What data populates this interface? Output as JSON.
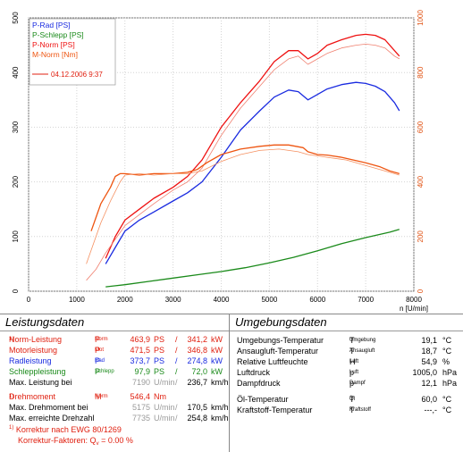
{
  "chart_data": {
    "type": "line",
    "xlabel": "n [U/min]",
    "xlim": [
      0,
      8000
    ],
    "x_ticks": [
      "0",
      "1000",
      "2000",
      "3000",
      "4000",
      "5000",
      "6000",
      "7000",
      "8000"
    ],
    "ylim_left": [
      0,
      500
    ],
    "y_ticks_left": [
      "0",
      "100",
      "200",
      "300",
      "400",
      "500"
    ],
    "ylim_right": [
      0,
      1000
    ],
    "y_ticks_right": [
      "0",
      "200",
      "400",
      "600",
      "800",
      "1000"
    ],
    "grid": true,
    "legend_position": "top-left",
    "legend_date": "04.12.2006 9:37",
    "series": [
      {
        "name": "P-Rad [PS]",
        "color": "#1a2be0",
        "axis": "left",
        "x": [
          1600,
          1800,
          2000,
          2300,
          2600,
          3000,
          3300,
          3600,
          4000,
          4400,
          4800,
          5100,
          5400,
          5600,
          5800,
          6000,
          6200,
          6500,
          6800,
          7000,
          7200,
          7400,
          7600,
          7700
        ],
        "y": [
          50,
          80,
          110,
          130,
          145,
          165,
          180,
          200,
          245,
          295,
          330,
          355,
          368,
          365,
          350,
          360,
          370,
          378,
          382,
          380,
          375,
          365,
          345,
          330
        ]
      },
      {
        "name": "P-Schlepp [PS]",
        "color": "#1a8a1a",
        "axis": "left",
        "x": [
          1600,
          2000,
          2500,
          3000,
          3500,
          4000,
          4500,
          5000,
          5500,
          6000,
          6500,
          7000,
          7500,
          7700
        ],
        "y": [
          8,
          12,
          18,
          24,
          30,
          36,
          43,
          52,
          62,
          74,
          87,
          98,
          108,
          113
        ]
      },
      {
        "name": "P-Norm [PS]",
        "color": "#ee1111",
        "axis": "left",
        "x": [
          1600,
          1800,
          2000,
          2300,
          2600,
          3000,
          3300,
          3600,
          4000,
          4400,
          4800,
          5100,
          5400,
          5600,
          5800,
          6000,
          6200,
          6500,
          6800,
          7000,
          7200,
          7400,
          7600,
          7700
        ],
        "y": [
          60,
          100,
          130,
          150,
          170,
          190,
          210,
          240,
          300,
          345,
          385,
          420,
          440,
          440,
          425,
          435,
          450,
          460,
          468,
          470,
          468,
          460,
          440,
          430
        ]
      },
      {
        "name": "",
        "color": "#f08070",
        "axis": "left",
        "x": [
          1200,
          1400,
          1600,
          1800,
          2000,
          2300,
          2600,
          3000,
          3300,
          3600,
          4000,
          4400,
          4800,
          5100,
          5400,
          5600,
          5800,
          6000,
          6200,
          6500,
          6800,
          7000,
          7200,
          7400,
          7600,
          7700
        ],
        "y": [
          20,
          40,
          70,
          95,
          120,
          140,
          160,
          185,
          200,
          225,
          285,
          335,
          375,
          405,
          425,
          430,
          415,
          425,
          435,
          445,
          450,
          452,
          450,
          445,
          430,
          425
        ]
      },
      {
        "name": "M-Norm [Nm]",
        "color": "#ee5511",
        "axis": "right",
        "x": [
          1300,
          1500,
          1700,
          1800,
          1900,
          2000,
          2300,
          2600,
          3000,
          3300,
          3500,
          3700,
          4000,
          4400,
          4800,
          5100,
          5400,
          5700,
          5800,
          6000,
          6200,
          6500,
          7000,
          7300,
          7500,
          7700
        ],
        "y": [
          220,
          320,
          380,
          420,
          430,
          430,
          425,
          430,
          430,
          435,
          445,
          470,
          500,
          520,
          530,
          535,
          535,
          525,
          510,
          500,
          498,
          490,
          470,
          455,
          440,
          430
        ]
      },
      {
        "name": "",
        "color": "#f59060",
        "axis": "right",
        "x": [
          1200,
          1500,
          1700,
          1900,
          2000,
          2300,
          2600,
          3000,
          3300,
          3600,
          4000,
          4400,
          4800,
          5200,
          5600,
          5800,
          6000,
          6200,
          6600,
          7000,
          7400,
          7700
        ],
        "y": [
          100,
          250,
          330,
          400,
          425,
          430,
          425,
          430,
          430,
          440,
          475,
          500,
          515,
          520,
          510,
          500,
          495,
          490,
          480,
          460,
          440,
          425
        ]
      }
    ]
  },
  "left_panel": {
    "title": "Leistungsdaten",
    "rows": [
      {
        "label": "Norm-Leistung",
        "mark": "1)",
        "sym": "P",
        "symsub": "Norm",
        "val1": "463,9",
        "u1": "PS",
        "val2": "341,2",
        "u2": "kW",
        "color": "#e02010"
      },
      {
        "label": "Motorleistung",
        "mark": "",
        "sym": "P",
        "symsub": "Mot",
        "val1": "471,5",
        "u1": "PS",
        "val2": "346,8",
        "u2": "kW",
        "color": "#e02010"
      },
      {
        "label": "Radleistung",
        "mark": "",
        "sym": "P",
        "symsub": "Rad",
        "val1": "373,7",
        "u1": "PS",
        "val2": "274,8",
        "u2": "kW",
        "color": "#1a2be0"
      },
      {
        "label": "Schleppleistung",
        "mark": "",
        "sym": "P",
        "symsub": "Schlepp",
        "val1": "97,9",
        "u1": "PS",
        "val2": "72,0",
        "u2": "kW",
        "color": "#1a8a1a"
      },
      {
        "label": "Max. Leistung bei",
        "mark": "",
        "sym": "",
        "symsub": "",
        "val1": "7190",
        "u1": "U/min",
        "val2": "236,7",
        "u2": "km/h",
        "color": "#000000"
      },
      {
        "label": "Drehmoment",
        "mark": "1)",
        "sym": "M",
        "symsub": "Norm",
        "val1": "546,4",
        "u1": "Nm",
        "val2": "",
        "u2": "",
        "color": "#e02010"
      },
      {
        "label": "Max. Drehmoment bei",
        "mark": "",
        "sym": "",
        "symsub": "",
        "val1": "5175",
        "u1": "U/min",
        "val2": "170,5",
        "u2": "km/h",
        "color": "#000000"
      },
      {
        "label": "Max. erreichte Drehzahl",
        "mark": "",
        "sym": "",
        "symsub": "",
        "val1": "7735",
        "u1": "U/min",
        "val2": "254,8",
        "u2": "km/h",
        "color": "#000000"
      }
    ],
    "correction_mark": "1)",
    "correction_text": "Korrektur nach EWG 80/1269",
    "factor_label": "Korrektur-Faktoren:",
    "factor_sym": "Q",
    "factor_sub": "v",
    "factor_value": "= 0.00 %"
  },
  "right_panel": {
    "title": "Umgebungsdaten",
    "rows": [
      {
        "label": "Umgebungs-Temperatur",
        "sym": "T",
        "symsub": "Umgebung",
        "value": "19,1",
        "unit": "°C"
      },
      {
        "label": "Ansaugluft-Temperatur",
        "sym": "T",
        "symsub": "Ansaugluft",
        "value": "18,7",
        "unit": "°C"
      },
      {
        "label": "Relative Luftfeuchte",
        "sym": "H",
        "symsub": "Luft",
        "value": "54,9",
        "unit": "%"
      },
      {
        "label": "Luftdruck",
        "sym": "p",
        "symsub": "Luft",
        "value": "1005,0",
        "unit": "hPa"
      },
      {
        "label": "Dampfdruck",
        "sym": "p",
        "symsub": "Dampf",
        "value": "12,1",
        "unit": "hPa"
      },
      {
        "label": "Öl-Temperatur",
        "sym": "T",
        "symsub": "Öl",
        "value": "60,0",
        "unit": "°C"
      },
      {
        "label": "Kraftstoff-Temperatur",
        "sym": "T",
        "symsub": "Kraftstoff",
        "value": "---,-",
        "unit": "°C"
      }
    ]
  }
}
